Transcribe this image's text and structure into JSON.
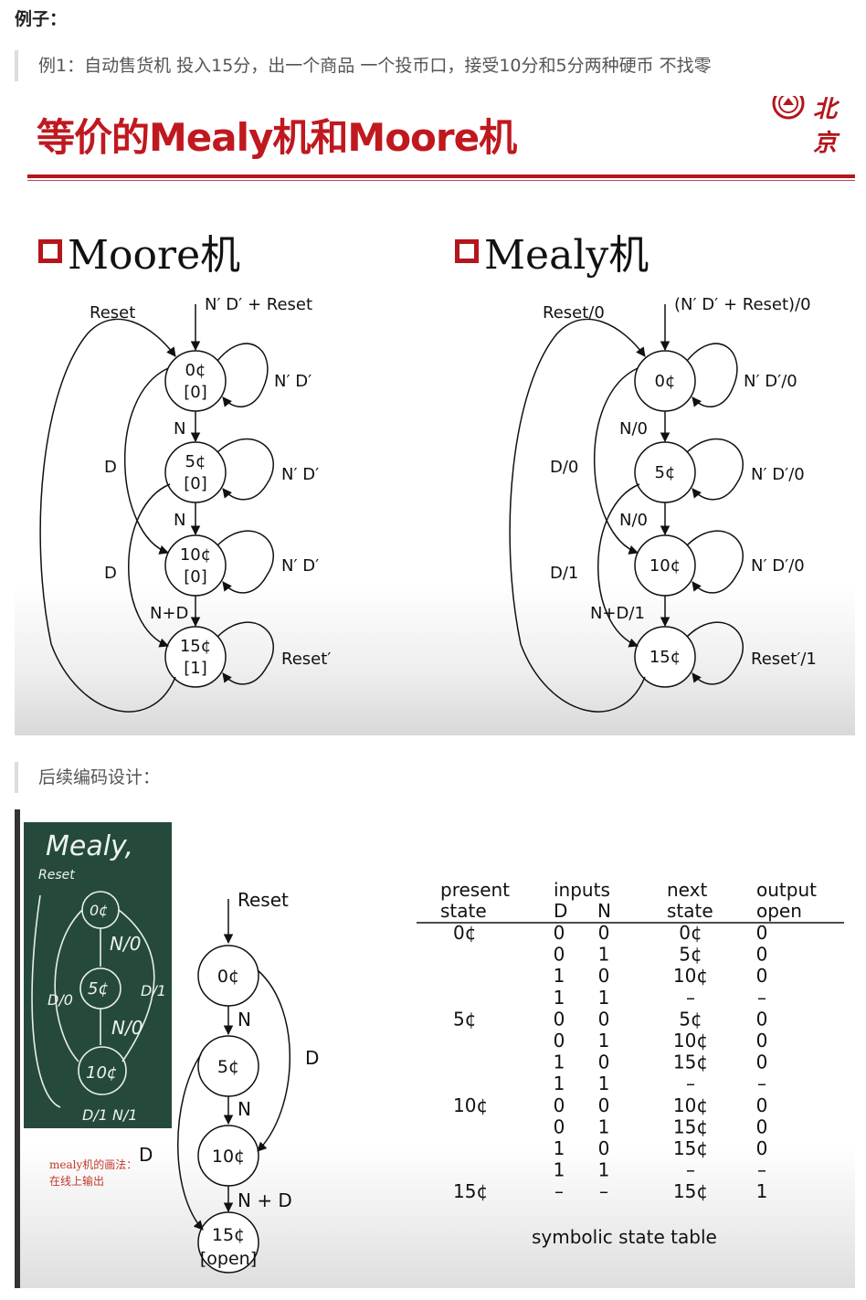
{
  "page": {
    "heading": "例子：",
    "example_text": "例1：自动售货机   投入15分，出一个商品   一个投币口，接受10分和5分两种硬币   不找零",
    "followup_text": "后续编码设计："
  },
  "slide1": {
    "title": "等价的Mealy机和Moore机",
    "logo_text": "北京",
    "moore": {
      "title": "Moore机",
      "states": [
        {
          "name": "0¢",
          "output": "[0]"
        },
        {
          "name": "5¢",
          "output": "[0]"
        },
        {
          "name": "10¢",
          "output": "[0]"
        },
        {
          "name": "15¢",
          "output": "[1]"
        }
      ],
      "labels": {
        "entry": "N′ D′ + Reset",
        "reset": "Reset",
        "self0": "N′ D′",
        "self5": "N′ D′",
        "self10": "N′ D′",
        "self15": "Reset′",
        "n1": "N",
        "n2": "N",
        "nd": "N+D",
        "d1": "D",
        "d2": "D"
      }
    },
    "mealy": {
      "title": "Mealy机",
      "states": [
        "0¢",
        "5¢",
        "10¢",
        "15¢"
      ],
      "labels": {
        "entry": "(N′ D′ + Reset)/0",
        "reset": "Reset/0",
        "self0": "N′ D′/0",
        "self5": "N′ D′/0",
        "self10": "N′ D′/0",
        "self15": "Reset′/1",
        "n1": "N/0",
        "n2": "N/0",
        "nd": "N+D/1",
        "d1": "D/0",
        "d2": "D/1"
      }
    }
  },
  "slide2": {
    "chalk": {
      "title": "Mealy,",
      "reset": "Reset",
      "s0": "0¢",
      "s5": "5¢",
      "s10": "10¢",
      "n0a": "N/0",
      "n0b": "N/0",
      "d0": "D/0",
      "d1": "D/1",
      "bottom": "D/1  N/1"
    },
    "caption_line1": "mealy机的画法：",
    "caption_line2": "在线上输出",
    "diagram": {
      "reset": "Reset",
      "states": [
        "0¢",
        "5¢",
        "10¢",
        "15¢"
      ],
      "open_label": "[open]",
      "n1": "N",
      "n2": "N",
      "nd": "N + D",
      "d_right": "D",
      "d_left": "D"
    },
    "table": {
      "caption": "symbolic state table",
      "headers": {
        "present": "present",
        "state": "state",
        "inputs": "inputs",
        "d": "D",
        "n": "N",
        "next": "next",
        "next_state": "state",
        "output": "output",
        "open": "open"
      },
      "rows": [
        {
          "present": "0¢",
          "d": "0",
          "n": "0",
          "next": "0¢",
          "open": "0"
        },
        {
          "present": "",
          "d": "0",
          "n": "1",
          "next": "5¢",
          "open": "0"
        },
        {
          "present": "",
          "d": "1",
          "n": "0",
          "next": "10¢",
          "open": "0"
        },
        {
          "present": "",
          "d": "1",
          "n": "1",
          "next": "–",
          "open": "–"
        },
        {
          "present": "5¢",
          "d": "0",
          "n": "0",
          "next": "5¢",
          "open": "0"
        },
        {
          "present": "",
          "d": "0",
          "n": "1",
          "next": "10¢",
          "open": "0"
        },
        {
          "present": "",
          "d": "1",
          "n": "0",
          "next": "15¢",
          "open": "0"
        },
        {
          "present": "",
          "d": "1",
          "n": "1",
          "next": "–",
          "open": "–"
        },
        {
          "present": "10¢",
          "d": "0",
          "n": "0",
          "next": "10¢",
          "open": "0"
        },
        {
          "present": "",
          "d": "0",
          "n": "1",
          "next": "15¢",
          "open": "0"
        },
        {
          "present": "",
          "d": "1",
          "n": "0",
          "next": "15¢",
          "open": "0"
        },
        {
          "present": "",
          "d": "1",
          "n": "1",
          "next": "–",
          "open": "–"
        },
        {
          "present": "15¢",
          "d": "–",
          "n": "–",
          "next": "15¢",
          "open": "1"
        }
      ]
    }
  }
}
